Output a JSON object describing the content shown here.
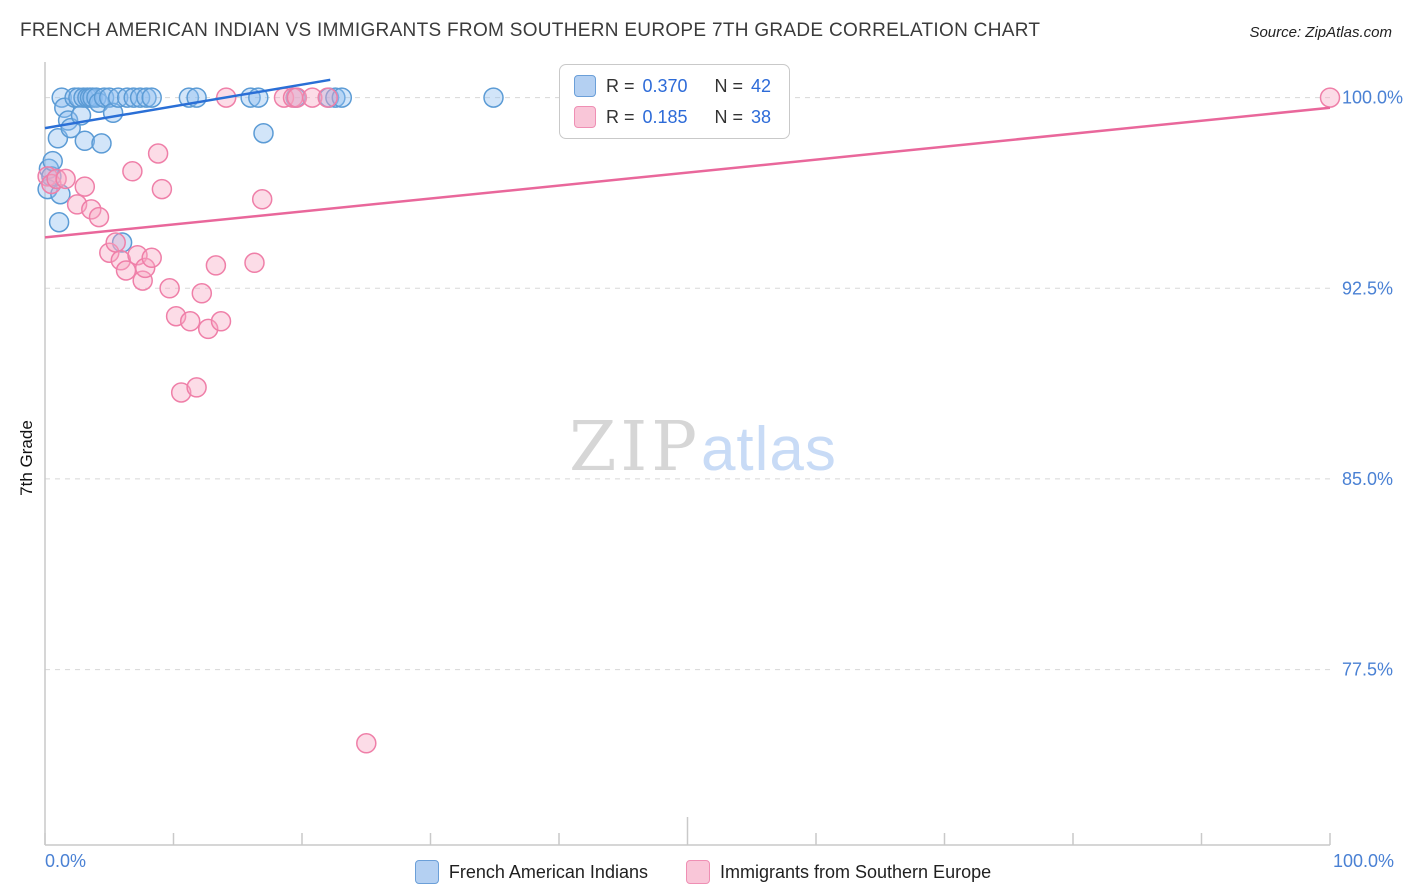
{
  "header": {
    "title": "FRENCH AMERICAN INDIAN VS IMMIGRANTS FROM SOUTHERN EUROPE 7TH GRADE CORRELATION CHART",
    "source": "Source: ZipAtlas.com"
  },
  "watermark": {
    "zip": "ZIP",
    "atlas": "atlas"
  },
  "legend_box": {
    "rows": [
      {
        "r_label": "R =",
        "r_value": "0.370",
        "n_label": "N =",
        "n_value": "42"
      },
      {
        "r_label": "R =",
        "r_value": "0.185",
        "n_label": "N =",
        "n_value": "38"
      }
    ]
  },
  "bottom_legend": {
    "items": [
      {
        "label": "French American Indians"
      },
      {
        "label": "Immigrants from Southern Europe"
      }
    ]
  },
  "axis": {
    "x_min_label": "0.0%",
    "x_max_label": "100.0%"
  },
  "chart_data": {
    "type": "scatter",
    "title": "French American Indian vs Immigrants from Southern Europe 7th Grade Correlation Chart",
    "xlabel": "",
    "ylabel": "7th Grade",
    "xlim": [
      0,
      100
    ],
    "ylim": [
      70.6,
      101.4
    ],
    "grid": "horizontal-dashed",
    "legend_position": "top-center",
    "axis_color": "#4a81d4",
    "y_gridlines": [
      {
        "value": 100.0,
        "label": "100.0%"
      },
      {
        "value": 92.5,
        "label": "92.5%"
      },
      {
        "value": 85.0,
        "label": "85.0%"
      },
      {
        "value": 77.5,
        "label": "77.5%"
      }
    ],
    "x_ticks": [
      0,
      10,
      20,
      30,
      40,
      50,
      60,
      70,
      80,
      90,
      100
    ],
    "series": [
      {
        "name": "French American Indians",
        "R": 0.37,
        "N": 42,
        "marker_fill": "#8fbdf0",
        "marker_stroke": "#5b9bd5",
        "line_color": "#2a6fd6",
        "points": [
          [
            0.2,
            96.4
          ],
          [
            0.3,
            97.2
          ],
          [
            0.5,
            96.9
          ],
          [
            0.6,
            97.5
          ],
          [
            1.0,
            98.4
          ],
          [
            1.1,
            95.1
          ],
          [
            1.2,
            96.2
          ],
          [
            1.3,
            100
          ],
          [
            1.5,
            99.6
          ],
          [
            1.8,
            99.1
          ],
          [
            2.0,
            98.8
          ],
          [
            2.3,
            100
          ],
          [
            2.6,
            100
          ],
          [
            2.8,
            99.3
          ],
          [
            3.0,
            100
          ],
          [
            3.1,
            98.3
          ],
          [
            3.3,
            100
          ],
          [
            3.5,
            100
          ],
          [
            3.7,
            100
          ],
          [
            4.0,
            100
          ],
          [
            4.2,
            99.8
          ],
          [
            4.4,
            98.2
          ],
          [
            4.6,
            100
          ],
          [
            5.0,
            100
          ],
          [
            5.3,
            99.4
          ],
          [
            5.7,
            100
          ],
          [
            6.0,
            94.3
          ],
          [
            6.4,
            100
          ],
          [
            6.9,
            100
          ],
          [
            7.4,
            100
          ],
          [
            7.9,
            100
          ],
          [
            8.3,
            100
          ],
          [
            11.2,
            100
          ],
          [
            11.8,
            100
          ],
          [
            16.0,
            100
          ],
          [
            16.6,
            100
          ],
          [
            17.0,
            98.6
          ],
          [
            19.5,
            100
          ],
          [
            22.1,
            100
          ],
          [
            22.6,
            100
          ],
          [
            23.1,
            100
          ],
          [
            34.9,
            100
          ]
        ],
        "trend": {
          "x": [
            0,
            22.2
          ],
          "y": [
            98.8,
            100.7
          ]
        }
      },
      {
        "name": "Immigrants from Southern Europe",
        "R": 0.185,
        "N": 38,
        "marker_fill": "#f8a8c4",
        "marker_stroke": "#ef7fa8",
        "line_color": "#e9679b",
        "points": [
          [
            0.2,
            96.9
          ],
          [
            0.5,
            96.6
          ],
          [
            0.9,
            96.8
          ],
          [
            1.6,
            96.8
          ],
          [
            2.5,
            95.8
          ],
          [
            3.1,
            96.5
          ],
          [
            3.6,
            95.6
          ],
          [
            4.2,
            95.3
          ],
          [
            5.0,
            93.9
          ],
          [
            5.5,
            94.3
          ],
          [
            5.9,
            93.6
          ],
          [
            6.3,
            93.2
          ],
          [
            6.8,
            97.1
          ],
          [
            7.2,
            93.8
          ],
          [
            7.6,
            92.8
          ],
          [
            7.8,
            93.3
          ],
          [
            8.3,
            93.7
          ],
          [
            8.8,
            97.8
          ],
          [
            9.1,
            96.4
          ],
          [
            9.7,
            92.5
          ],
          [
            10.2,
            91.4
          ],
          [
            10.6,
            88.4
          ],
          [
            11.3,
            91.2
          ],
          [
            11.8,
            88.6
          ],
          [
            12.2,
            92.3
          ],
          [
            12.7,
            90.9
          ],
          [
            13.3,
            93.4
          ],
          [
            13.7,
            91.2
          ],
          [
            14.1,
            100
          ],
          [
            16.3,
            93.5
          ],
          [
            16.9,
            96.0
          ],
          [
            18.6,
            100
          ],
          [
            19.3,
            100
          ],
          [
            19.6,
            100
          ],
          [
            20.8,
            100
          ],
          [
            22.0,
            100
          ],
          [
            25.0,
            74.6
          ],
          [
            100.0,
            100
          ]
        ],
        "trend": {
          "x": [
            0,
            100
          ],
          "y": [
            94.5,
            99.6
          ]
        }
      }
    ]
  }
}
